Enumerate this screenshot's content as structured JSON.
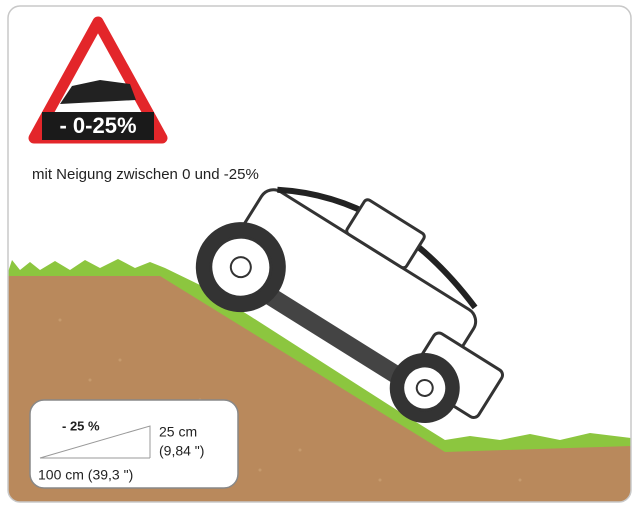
{
  "badge": {
    "label": "- 0-25%"
  },
  "caption": "mit Neigung zwischen 0 und -25%",
  "slope_box": {
    "grade": "- 25 %",
    "height_cm": "25 cm",
    "height_in": "(9,84 \")",
    "length": "100 cm (39,3 \")"
  }
}
